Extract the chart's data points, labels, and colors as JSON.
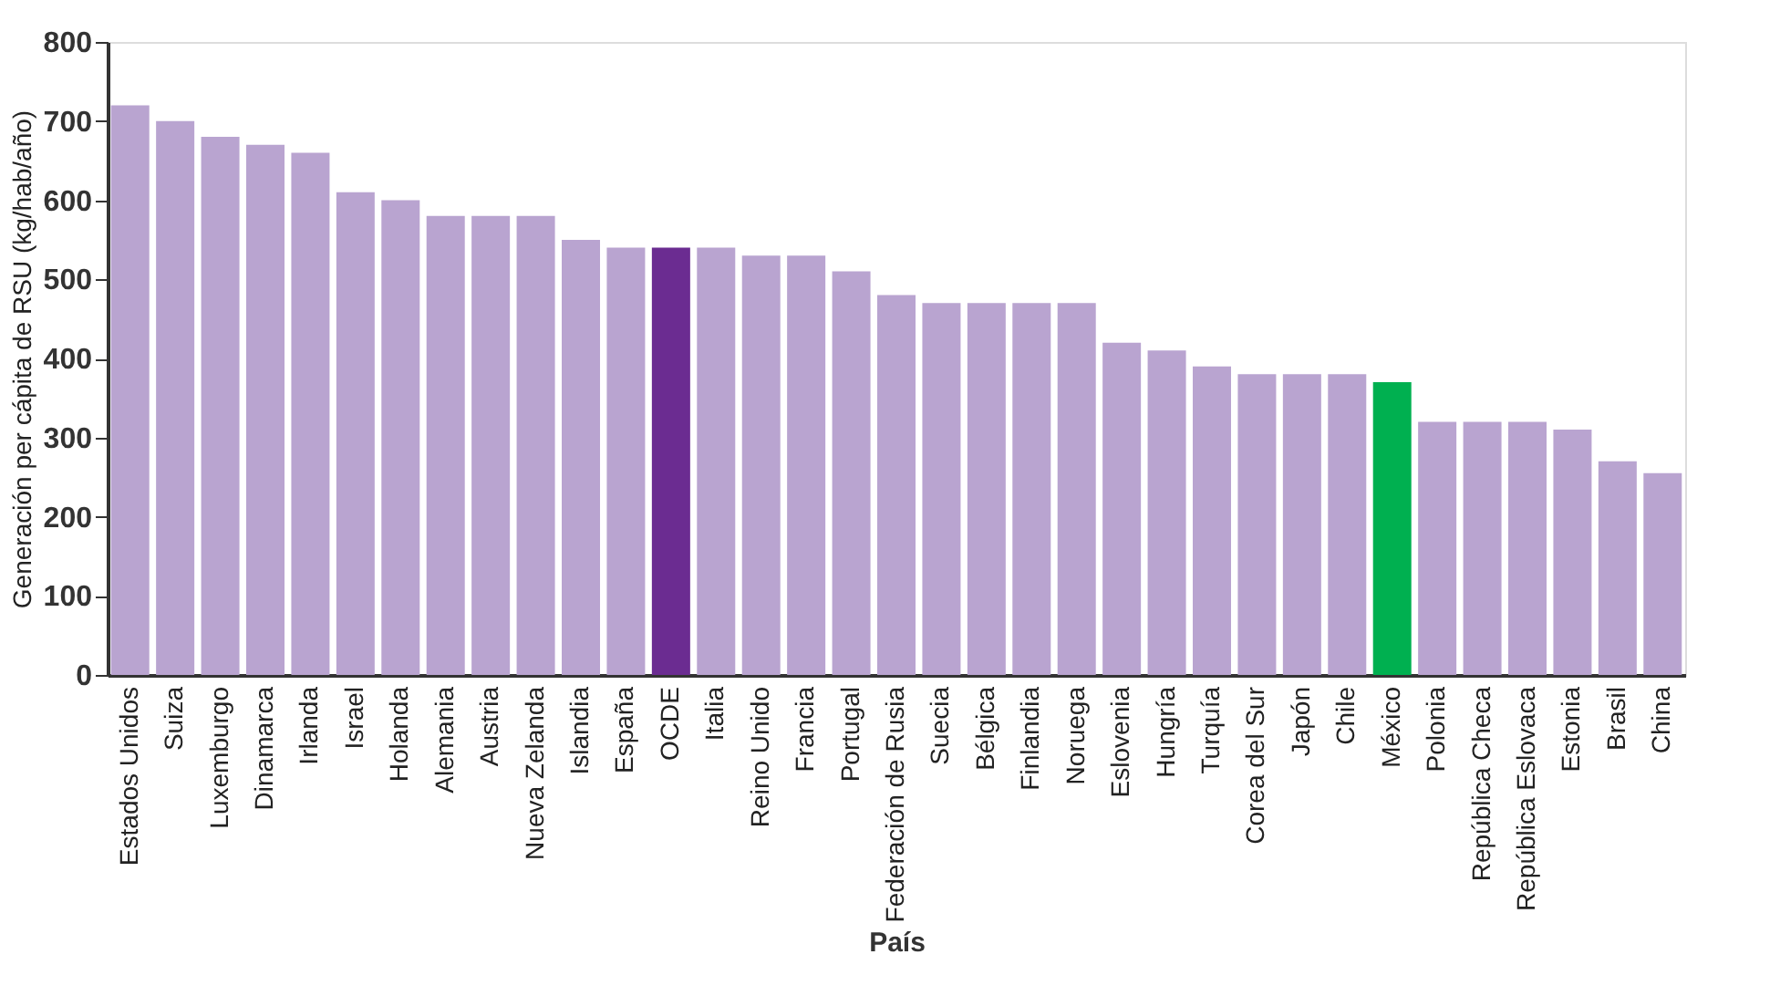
{
  "chart_data": {
    "type": "bar",
    "xlabel": "País",
    "ylabel": "Generación per cápita de RSU (kg/hab/año)",
    "categories": [
      "Estados Unidos",
      "Suiza",
      "Luxemburgo",
      "Dinamarca",
      "Irlanda",
      "Israel",
      "Holanda",
      "Alemania",
      "Austria",
      "Nueva Zelanda",
      "Islandia",
      "España",
      "OCDE",
      "Italia",
      "Reino Unido",
      "Francia",
      "Portugal",
      "Federación de Rusia",
      "Suecia",
      "Bélgica",
      "Finlandia",
      "Noruega",
      "Eslovenia",
      "Hungría",
      "Turquía",
      "Corea del Sur",
      "Japón",
      "Chile",
      "México",
      "Polonia",
      "República Checa",
      "República Eslovaca",
      "Estonia",
      "Brasil",
      "China"
    ],
    "values": [
      720,
      700,
      680,
      670,
      660,
      610,
      600,
      580,
      580,
      580,
      550,
      540,
      540,
      540,
      530,
      530,
      510,
      480,
      470,
      470,
      470,
      470,
      420,
      410,
      390,
      380,
      380,
      380,
      370,
      320,
      320,
      320,
      310,
      270,
      255
    ],
    "colors": [
      "#b9a4d0",
      "#b9a4d0",
      "#b9a4d0",
      "#b9a4d0",
      "#b9a4d0",
      "#b9a4d0",
      "#b9a4d0",
      "#b9a4d0",
      "#b9a4d0",
      "#b9a4d0",
      "#b9a4d0",
      "#b9a4d0",
      "#6b2c91",
      "#b9a4d0",
      "#b9a4d0",
      "#b9a4d0",
      "#b9a4d0",
      "#b9a4d0",
      "#b9a4d0",
      "#b9a4d0",
      "#b9a4d0",
      "#b9a4d0",
      "#b9a4d0",
      "#b9a4d0",
      "#b9a4d0",
      "#b9a4d0",
      "#b9a4d0",
      "#b9a4d0",
      "#00b050",
      "#b9a4d0",
      "#b9a4d0",
      "#b9a4d0",
      "#b9a4d0",
      "#b9a4d0",
      "#b9a4d0"
    ],
    "ylim": [
      0,
      800
    ],
    "yticks": [
      0,
      100,
      200,
      300,
      400,
      500,
      600,
      700,
      800
    ],
    "grid": false
  }
}
